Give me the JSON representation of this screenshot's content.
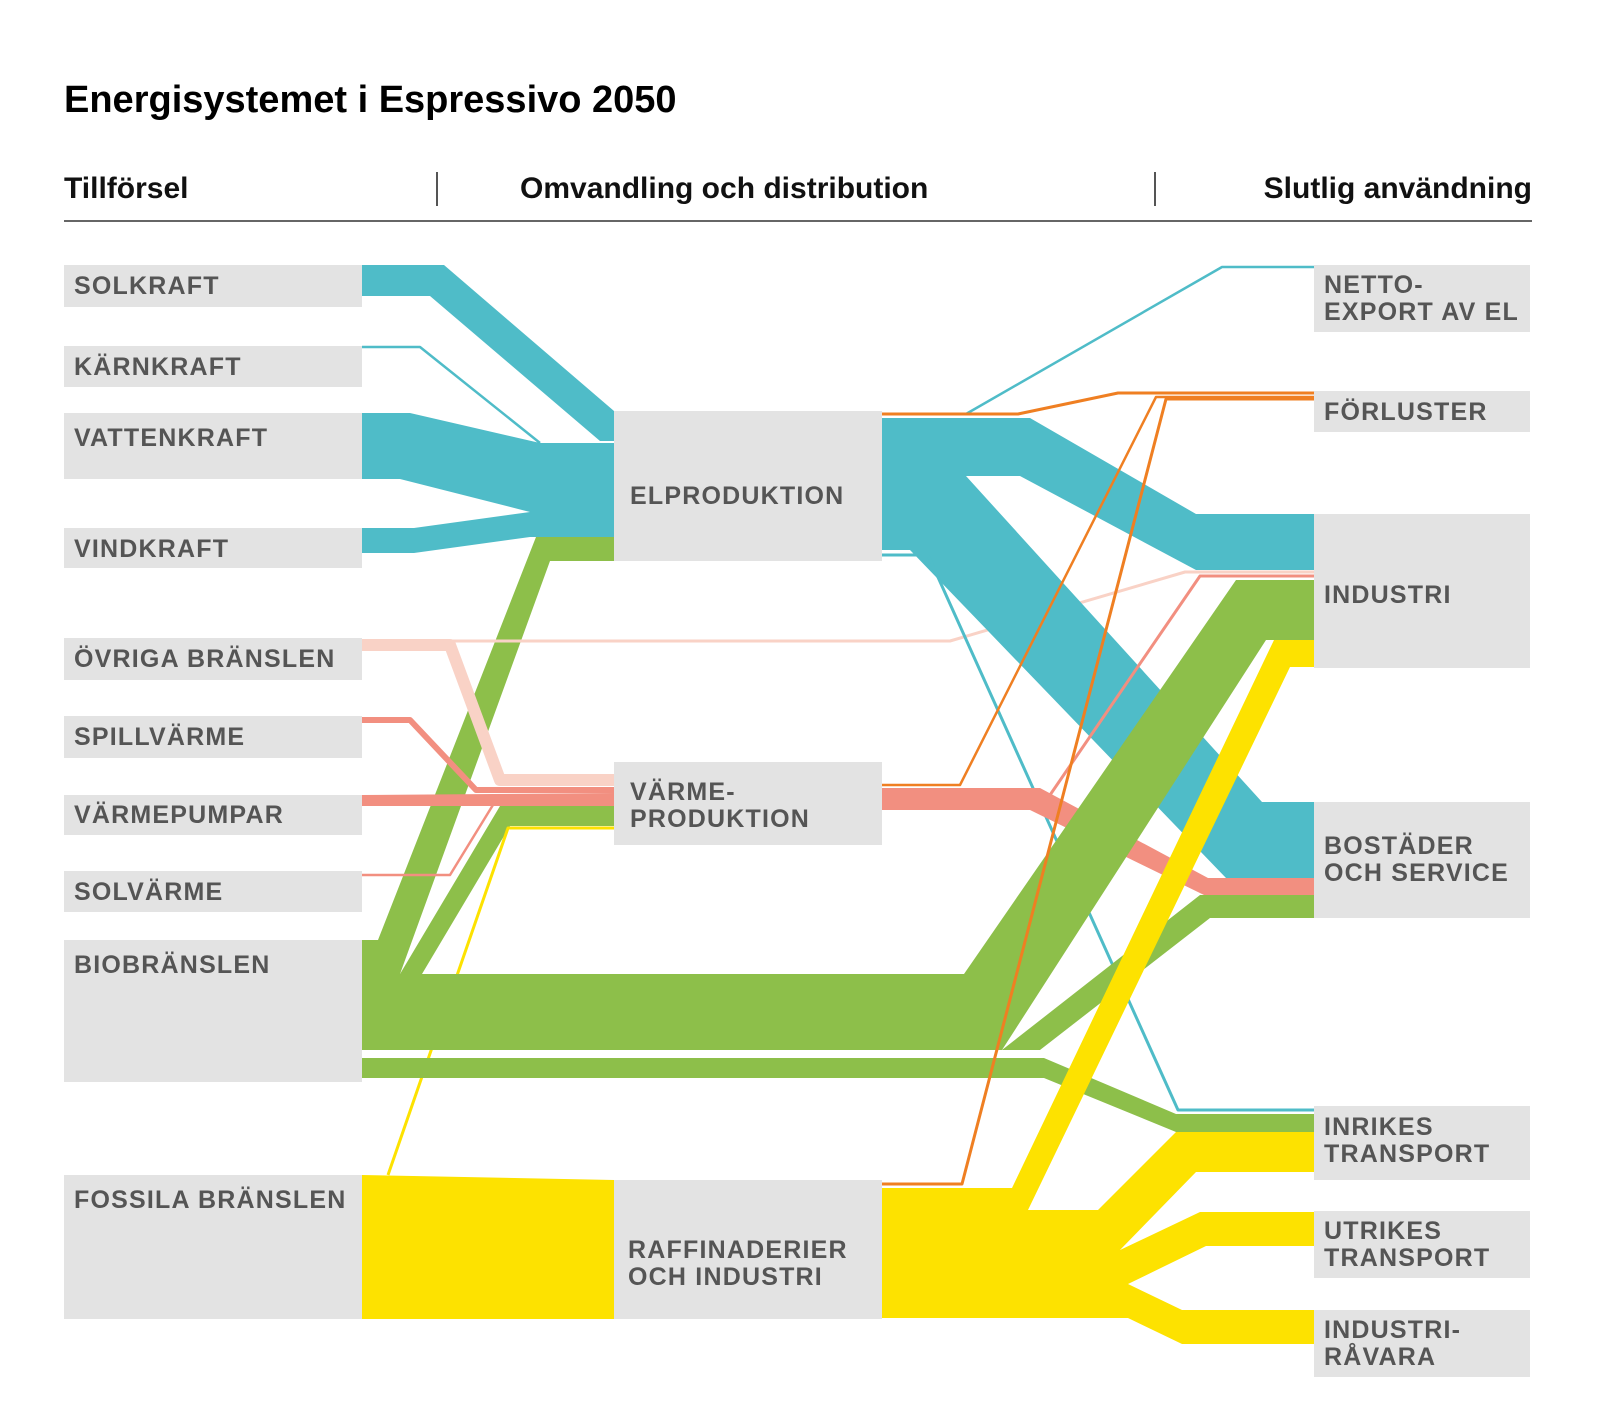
{
  "title": "Energisystemet i Espressivo 2050",
  "columns": {
    "supply": "Tillförsel",
    "conversion": "Omvandling och distribution",
    "end_use": "Slutlig användning"
  },
  "colors": {
    "electricity": "#4fbcc8",
    "bio": "#8dbf4a",
    "fossil": "#fde200",
    "heat": "#f28f80",
    "other_fuels": "#f9d2c6",
    "losses": "#ef7f22",
    "node_bg": "#e3e3e3"
  },
  "supply_nodes": [
    {
      "id": "solkraft",
      "lines": [
        "SOLKRAFT"
      ]
    },
    {
      "id": "karnkraft",
      "lines": [
        "KÄRNKRAFT"
      ]
    },
    {
      "id": "vattenkraft",
      "lines": [
        "VATTENKRAFT"
      ]
    },
    {
      "id": "vindkraft",
      "lines": [
        "VINDKRAFT"
      ]
    },
    {
      "id": "ovriga",
      "lines": [
        "ÖVRIGA BRÄNSLEN"
      ]
    },
    {
      "id": "spillvarme",
      "lines": [
        "SPILLVÄRME"
      ]
    },
    {
      "id": "varmepumpar",
      "lines": [
        "VÄRMEPUMPAR"
      ]
    },
    {
      "id": "solvarme",
      "lines": [
        "SOLVÄRME"
      ]
    },
    {
      "id": "biobranslen",
      "lines": [
        "BIOBRÄNSLEN"
      ]
    },
    {
      "id": "fossila",
      "lines": [
        "FOSSILA BRÄNSLEN"
      ]
    }
  ],
  "conversion_nodes": [
    {
      "id": "elproduktion",
      "lines": [
        "ELPRODUKTION"
      ]
    },
    {
      "id": "varmeproduktion",
      "lines": [
        "VÄRME-",
        "PRODUKTION"
      ]
    },
    {
      "id": "raffinaderier",
      "lines": [
        "RAFFINADERIER",
        "OCH INDUSTRI"
      ]
    }
  ],
  "end_use_nodes": [
    {
      "id": "nettoexport",
      "lines": [
        "NETTO-",
        "EXPORT AV EL"
      ]
    },
    {
      "id": "forluster",
      "lines": [
        "FÖRLUSTER"
      ]
    },
    {
      "id": "industri",
      "lines": [
        "INDUSTRI"
      ]
    },
    {
      "id": "bostader",
      "lines": [
        "BOSTÄDER",
        "OCH SERVICE"
      ]
    },
    {
      "id": "inrikes",
      "lines": [
        "INRIKES",
        "TRANSPORT"
      ]
    },
    {
      "id": "utrikes",
      "lines": [
        "UTRIKES",
        "TRANSPORT"
      ]
    },
    {
      "id": "industriravara",
      "lines": [
        "INDUSTRI-",
        "RÅVARA"
      ]
    }
  ],
  "flows": [
    {
      "source": "solkraft",
      "target": "elproduktion",
      "carrier": "electricity"
    },
    {
      "source": "karnkraft",
      "target": "elproduktion",
      "carrier": "electricity"
    },
    {
      "source": "vattenkraft",
      "target": "elproduktion",
      "carrier": "electricity"
    },
    {
      "source": "vindkraft",
      "target": "elproduktion",
      "carrier": "electricity"
    },
    {
      "source": "biobranslen",
      "target": "elproduktion",
      "carrier": "bio"
    },
    {
      "source": "ovriga",
      "target": "varmeproduktion",
      "carrier": "other_fuels"
    },
    {
      "source": "ovriga",
      "target": "industri",
      "carrier": "other_fuels"
    },
    {
      "source": "spillvarme",
      "target": "varmeproduktion",
      "carrier": "heat"
    },
    {
      "source": "varmepumpar",
      "target": "varmeproduktion",
      "carrier": "heat"
    },
    {
      "source": "solvarme",
      "target": "varmeproduktion",
      "carrier": "heat"
    },
    {
      "source": "biobranslen",
      "target": "varmeproduktion",
      "carrier": "bio"
    },
    {
      "source": "fossila",
      "target": "varmeproduktion",
      "carrier": "fossil"
    },
    {
      "source": "fossila",
      "target": "raffinaderier",
      "carrier": "fossil"
    },
    {
      "source": "elproduktion",
      "target": "nettoexport",
      "carrier": "electricity"
    },
    {
      "source": "elproduktion",
      "target": "forluster",
      "carrier": "losses"
    },
    {
      "source": "elproduktion",
      "target": "industri",
      "carrier": "electricity"
    },
    {
      "source": "elproduktion",
      "target": "bostader",
      "carrier": "electricity"
    },
    {
      "source": "elproduktion",
      "target": "inrikes",
      "carrier": "electricity"
    },
    {
      "source": "varmeproduktion",
      "target": "forluster",
      "carrier": "losses"
    },
    {
      "source": "varmeproduktion",
      "target": "industri",
      "carrier": "heat"
    },
    {
      "source": "varmeproduktion",
      "target": "bostader",
      "carrier": "heat"
    },
    {
      "source": "biobranslen",
      "target": "industri",
      "carrier": "bio"
    },
    {
      "source": "biobranslen",
      "target": "bostader",
      "carrier": "bio"
    },
    {
      "source": "biobranslen",
      "target": "inrikes",
      "carrier": "bio"
    },
    {
      "source": "raffinaderier",
      "target": "forluster",
      "carrier": "losses"
    },
    {
      "source": "raffinaderier",
      "target": "industri",
      "carrier": "fossil"
    },
    {
      "source": "raffinaderier",
      "target": "inrikes",
      "carrier": "fossil"
    },
    {
      "source": "raffinaderier",
      "target": "utrikes",
      "carrier": "fossil"
    },
    {
      "source": "raffinaderier",
      "target": "industriravara",
      "carrier": "fossil"
    }
  ]
}
